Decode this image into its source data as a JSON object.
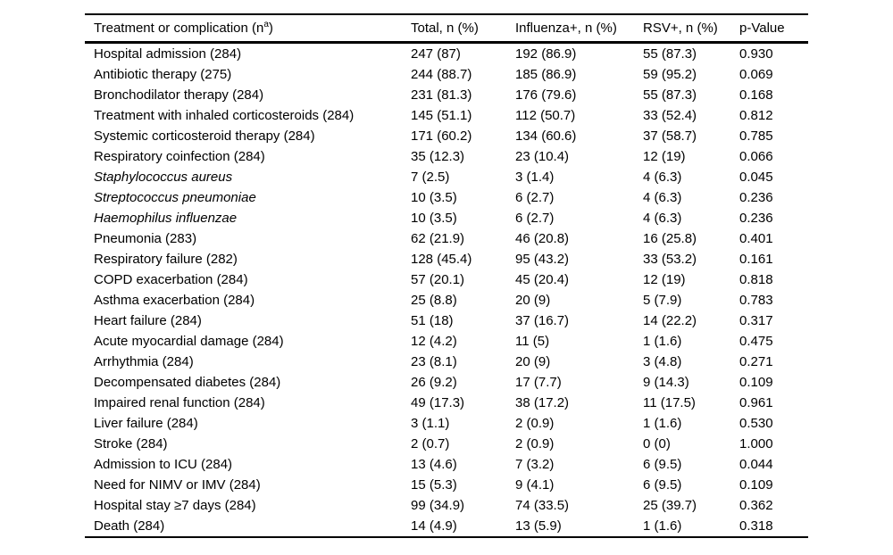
{
  "colors": {
    "text": "#000000",
    "background": "#ffffff",
    "rule": "#000000"
  },
  "table": {
    "header": {
      "treatment_prefix": "Treatment or complication (n",
      "treatment_sup": "a",
      "treatment_suffix": ")",
      "total": "Total, n (%)",
      "influenza": "Influenza+, n (%)",
      "rsv": "RSV+, n (%)",
      "p_value": "p-Value"
    },
    "rows": [
      {
        "label": "Hospital admission (284)",
        "italic": false,
        "total": "247 (87)",
        "influenza": "192 (86.9)",
        "rsv": "55 (87.3)",
        "p_value": "0.930"
      },
      {
        "label": "Antibiotic therapy (275)",
        "italic": false,
        "total": "244 (88.7)",
        "influenza": "185 (86.9)",
        "rsv": "59 (95.2)",
        "p_value": "0.069"
      },
      {
        "label": "Bronchodilator therapy (284)",
        "italic": false,
        "total": "231 (81.3)",
        "influenza": "176 (79.6)",
        "rsv": "55 (87.3)",
        "p_value": "0.168"
      },
      {
        "label": "Treatment with inhaled corticosteroids (284)",
        "italic": false,
        "total": "145 (51.1)",
        "influenza": "112 (50.7)",
        "rsv": "33 (52.4)",
        "p_value": "0.812"
      },
      {
        "label": "Systemic corticosteroid therapy (284)",
        "italic": false,
        "total": "171 (60.2)",
        "influenza": "134 (60.6)",
        "rsv": "37 (58.7)",
        "p_value": "0.785"
      },
      {
        "label": "Respiratory coinfection (284)",
        "italic": false,
        "total": "35 (12.3)",
        "influenza": "23 (10.4)",
        "rsv": "12 (19)",
        "p_value": "0.066"
      },
      {
        "label": "Staphylococcus aureus",
        "italic": true,
        "total": "7 (2.5)",
        "influenza": "3 (1.4)",
        "rsv": "4 (6.3)",
        "p_value": "0.045"
      },
      {
        "label": "Streptococcus pneumoniae",
        "italic": true,
        "total": "10 (3.5)",
        "influenza": "6 (2.7)",
        "rsv": "4 (6.3)",
        "p_value": "0.236"
      },
      {
        "label": "Haemophilus influenzae",
        "italic": true,
        "total": "10 (3.5)",
        "influenza": "6 (2.7)",
        "rsv": "4 (6.3)",
        "p_value": "0.236"
      },
      {
        "label": "Pneumonia (283)",
        "italic": false,
        "total": "62 (21.9)",
        "influenza": "46 (20.8)",
        "rsv": "16 (25.8)",
        "p_value": "0.401"
      },
      {
        "label": "Respiratory failure (282)",
        "italic": false,
        "total": "128 (45.4)",
        "influenza": "95 (43.2)",
        "rsv": "33 (53.2)",
        "p_value": "0.161"
      },
      {
        "label": "COPD exacerbation (284)",
        "italic": false,
        "total": "57 (20.1)",
        "influenza": "45 (20.4)",
        "rsv": "12 (19)",
        "p_value": "0.818"
      },
      {
        "label": "Asthma exacerbation (284)",
        "italic": false,
        "total": "25 (8.8)",
        "influenza": "20 (9)",
        "rsv": "5 (7.9)",
        "p_value": "0.783"
      },
      {
        "label": "Heart failure (284)",
        "italic": false,
        "total": "51 (18)",
        "influenza": "37 (16.7)",
        "rsv": "14 (22.2)",
        "p_value": "0.317"
      },
      {
        "label": "Acute myocardial damage (284)",
        "italic": false,
        "total": "12 (4.2)",
        "influenza": "11 (5)",
        "rsv": "1 (1.6)",
        "p_value": "0.475"
      },
      {
        "label": "Arrhythmia (284)",
        "italic": false,
        "total": "23 (8.1)",
        "influenza": "20 (9)",
        "rsv": "3 (4.8)",
        "p_value": "0.271"
      },
      {
        "label": "Decompensated diabetes (284)",
        "italic": false,
        "total": "26 (9.2)",
        "influenza": "17 (7.7)",
        "rsv": "9 (14.3)",
        "p_value": "0.109"
      },
      {
        "label": "Impaired renal function (284)",
        "italic": false,
        "total": "49 (17.3)",
        "influenza": "38 (17.2)",
        "rsv": "11 (17.5)",
        "p_value": "0.961"
      },
      {
        "label": "Liver failure (284)",
        "italic": false,
        "total": "3 (1.1)",
        "influenza": "2 (0.9)",
        "rsv": "1 (1.6)",
        "p_value": "0.530"
      },
      {
        "label": "Stroke (284)",
        "italic": false,
        "total": "2 (0.7)",
        "influenza": "2 (0.9)",
        "rsv": "0 (0)",
        "p_value": "1.000"
      },
      {
        "label": "Admission to ICU (284)",
        "italic": false,
        "total": "13 (4.6)",
        "influenza": "7 (3.2)",
        "rsv": "6 (9.5)",
        "p_value": "0.044"
      },
      {
        "label": "Need for NIMV or IMV (284)",
        "italic": false,
        "total": "15 (5.3)",
        "influenza": "9 (4.1)",
        "rsv": "6 (9.5)",
        "p_value": "0.109"
      },
      {
        "label": "Hospital stay ≥7 days (284)",
        "italic": false,
        "total": "99 (34.9)",
        "influenza": "74 (33.5)",
        "rsv": "25 (39.7)",
        "p_value": "0.362"
      },
      {
        "label": "Death (284)",
        "italic": false,
        "total": "14 (4.9)",
        "influenza": "13 (5.9)",
        "rsv": "1 (1.6)",
        "p_value": "0.318"
      }
    ]
  }
}
